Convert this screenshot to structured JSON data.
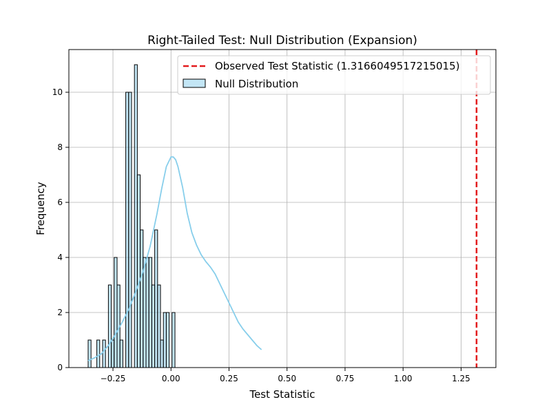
{
  "chart_data": {
    "type": "bar",
    "title": "Right-Tailed Test: Null Distribution (Expansion)",
    "xlabel": "Test Statistic",
    "ylabel": "Frequency",
    "xlim": [
      -0.44,
      1.4
    ],
    "ylim": [
      0,
      11.55
    ],
    "xticks": [
      -0.25,
      0.0,
      0.25,
      0.5,
      0.75,
      1.0,
      1.25
    ],
    "xtick_labels": [
      "−0.25",
      "0.00",
      "0.25",
      "0.50",
      "0.75",
      "1.00",
      "1.25"
    ],
    "yticks": [
      0,
      2,
      4,
      6,
      8,
      10
    ],
    "ytick_labels": [
      "0",
      "2",
      "4",
      "6",
      "8",
      "10"
    ],
    "grid": true,
    "legend_position": "top-right",
    "bin_start": -0.357,
    "bin_width": 0.01247,
    "histogram_counts": [
      1,
      0,
      0,
      1,
      0,
      1,
      0,
      3,
      1,
      4,
      3,
      1,
      0,
      10,
      10,
      0,
      11,
      7,
      5,
      4,
      4,
      4,
      3,
      5,
      3,
      1,
      2,
      2,
      0,
      2
    ],
    "histogram_name": "Null Distribution",
    "histogram_color": "#87ceeb",
    "kde": {
      "x": [
        -0.357,
        -0.33,
        -0.3,
        -0.27,
        -0.24,
        -0.21,
        -0.18,
        -0.15,
        -0.12,
        -0.09,
        -0.06,
        -0.04,
        -0.02,
        0.0,
        0.01,
        0.02,
        0.03,
        0.05,
        0.07,
        0.09,
        0.11,
        0.13,
        0.15,
        0.17,
        0.19,
        0.21,
        0.23,
        0.25,
        0.27,
        0.29,
        0.31,
        0.33,
        0.35,
        0.37,
        0.39
      ],
      "y": [
        0.25,
        0.35,
        0.5,
        0.8,
        1.2,
        1.65,
        2.15,
        2.8,
        3.5,
        4.4,
        5.6,
        6.5,
        7.3,
        7.65,
        7.65,
        7.55,
        7.3,
        6.55,
        5.6,
        4.9,
        4.45,
        4.1,
        3.85,
        3.65,
        3.4,
        3.05,
        2.7,
        2.35,
        2.0,
        1.65,
        1.4,
        1.2,
        1.0,
        0.8,
        0.65
      ]
    },
    "observed_value": 1.3166049517215015,
    "observed_label": "Observed Test Statistic (1.3166049517215015)",
    "observed_color": "#e31a1c"
  }
}
